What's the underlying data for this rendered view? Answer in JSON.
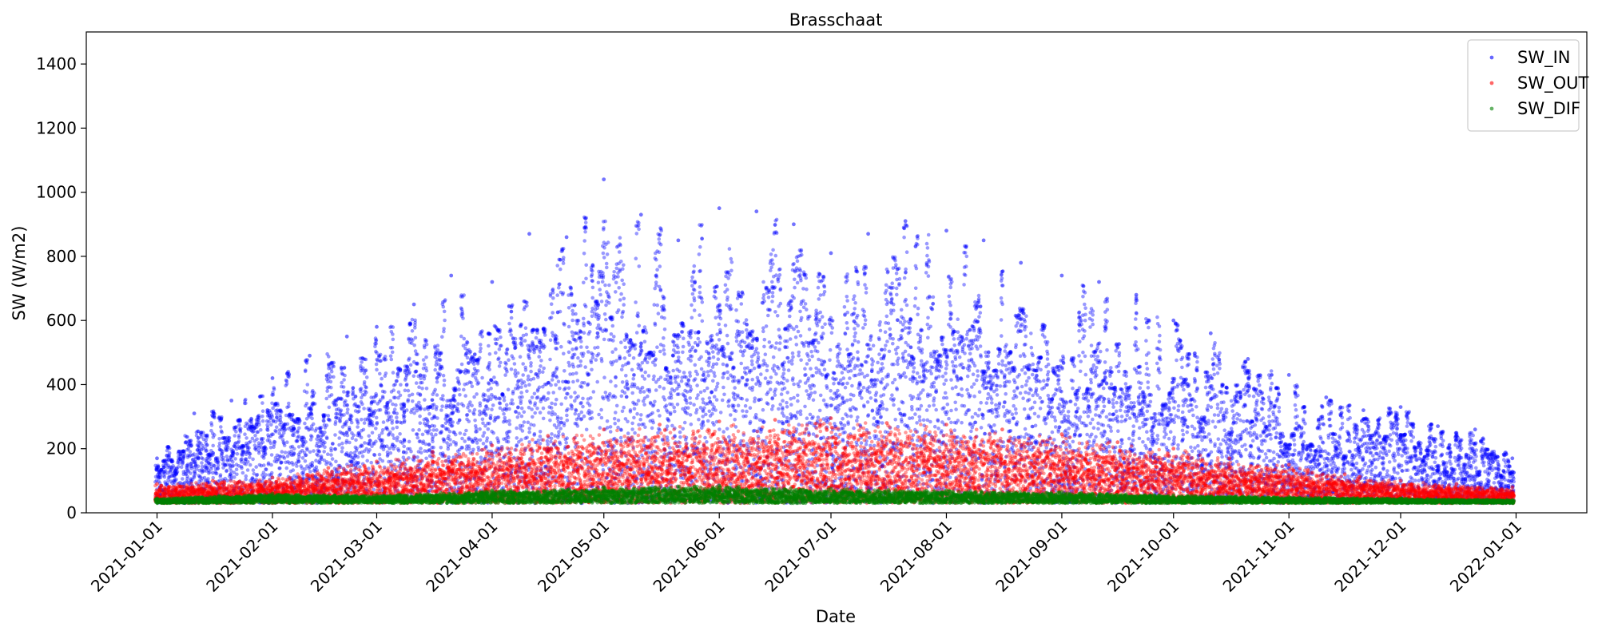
{
  "chart_data": {
    "type": "scatter",
    "title": "Brasschaat",
    "xlabel": "Date",
    "ylabel": "SW (W/m2)",
    "x_range": [
      "2020-12-13",
      "2022-01-20"
    ],
    "ylim": [
      0,
      1500
    ],
    "x_ticks": [
      "2021-01-01",
      "2021-02-01",
      "2021-03-01",
      "2021-04-01",
      "2021-05-01",
      "2021-06-01",
      "2021-07-01",
      "2021-08-01",
      "2021-09-01",
      "2021-10-01",
      "2021-11-01",
      "2021-12-01",
      "2022-01-01"
    ],
    "y_ticks": [
      0,
      200,
      400,
      600,
      800,
      1000,
      1200,
      1400
    ],
    "grid": false,
    "legend_position": "top-right",
    "series": [
      {
        "name": "SW_IN",
        "color": "#0000ff",
        "x": [
          "2021-01-01",
          "2021-01-11",
          "2021-01-21",
          "2021-02-01",
          "2021-02-11",
          "2021-02-21",
          "2021-03-01",
          "2021-03-11",
          "2021-03-21",
          "2021-04-01",
          "2021-04-11",
          "2021-04-21",
          "2021-05-01",
          "2021-05-11",
          "2021-05-21",
          "2021-06-01",
          "2021-06-11",
          "2021-06-21",
          "2021-07-01",
          "2021-07-11",
          "2021-07-21",
          "2021-08-01",
          "2021-08-11",
          "2021-08-21",
          "2021-09-01",
          "2021-09-11",
          "2021-09-21",
          "2021-10-01",
          "2021-10-11",
          "2021-10-21",
          "2021-11-01",
          "2021-11-11",
          "2021-11-21",
          "2021-12-01",
          "2021-12-11",
          "2021-12-21",
          "2021-12-31"
        ],
        "y": [
          170,
          310,
          350,
          420,
          490,
          550,
          580,
          650,
          740,
          720,
          870,
          860,
          1040,
          930,
          850,
          950,
          940,
          900,
          810,
          870,
          910,
          880,
          850,
          780,
          740,
          720,
          680,
          600,
          560,
          480,
          430,
          360,
          320,
          330,
          270,
          260,
          170
        ]
      },
      {
        "name": "SW_OUT",
        "color": "#ff0000",
        "x": [
          "2021-01-01",
          "2021-01-16",
          "2021-02-01",
          "2021-02-16",
          "2021-03-01",
          "2021-03-16",
          "2021-04-01",
          "2021-04-16",
          "2021-05-01",
          "2021-05-16",
          "2021-06-01",
          "2021-06-16",
          "2021-07-01",
          "2021-07-16",
          "2021-08-01",
          "2021-08-16",
          "2021-09-01",
          "2021-09-16",
          "2021-10-01",
          "2021-10-16",
          "2021-11-01",
          "2021-11-16",
          "2021-12-01",
          "2021-12-16",
          "2021-12-31"
        ],
        "y": [
          90,
          100,
          110,
          140,
          160,
          190,
          210,
          240,
          260,
          275,
          285,
          290,
          295,
          280,
          275,
          260,
          245,
          220,
          200,
          170,
          150,
          120,
          100,
          90,
          80
        ]
      },
      {
        "name": "SW_DIF",
        "color": "#008000",
        "x": [
          "2021-01-01",
          "2021-02-01",
          "2021-03-01",
          "2021-04-01",
          "2021-05-01",
          "2021-06-01",
          "2021-07-01",
          "2021-08-01",
          "2021-09-01",
          "2021-10-01",
          "2021-11-01",
          "2021-12-01",
          "2021-12-31"
        ],
        "y": [
          45,
          60,
          55,
          70,
          80,
          85,
          75,
          70,
          65,
          55,
          50,
          45,
          40
        ]
      }
    ]
  }
}
